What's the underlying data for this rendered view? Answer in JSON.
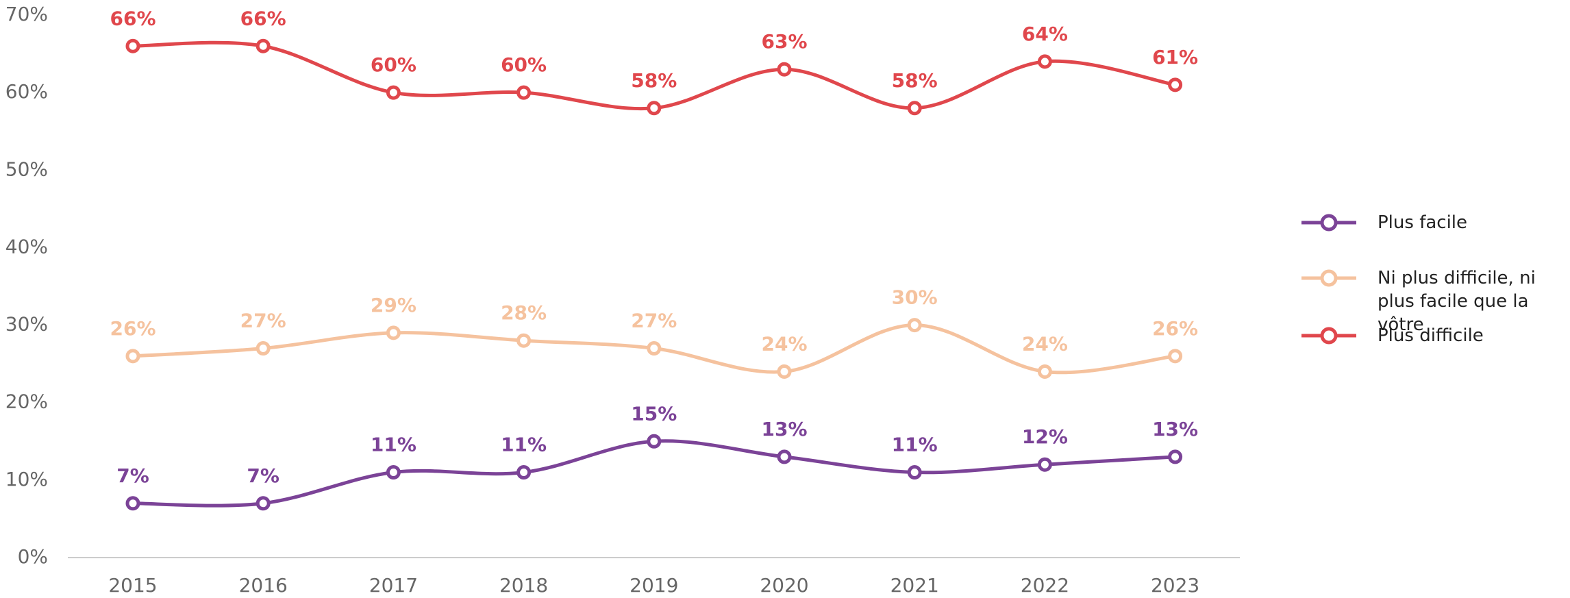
{
  "chart_data": {
    "type": "line",
    "categories": [
      "2015",
      "2016",
      "2017",
      "2018",
      "2019",
      "2020",
      "2021",
      "2022",
      "2023"
    ],
    "series": [
      {
        "name": "Plus facile",
        "color": "#7b4397",
        "values": [
          7,
          7,
          11,
          11,
          15,
          13,
          11,
          12,
          13
        ],
        "value_labels": [
          "7%",
          "7%",
          "11%",
          "11%",
          "15%",
          "13%",
          "11%",
          "12%",
          "13%"
        ]
      },
      {
        "name": "Ni plus difficile, ni plus facile que la vôtre",
        "color": "#f5c29e",
        "values": [
          26,
          27,
          29,
          28,
          27,
          24,
          30,
          24,
          26
        ],
        "value_labels": [
          "26%",
          "27%",
          "29%",
          "28%",
          "27%",
          "24%",
          "30%",
          "24%",
          "26%"
        ]
      },
      {
        "name": "Plus difficile",
        "color": "#e0474c",
        "values": [
          66,
          66,
          60,
          60,
          58,
          63,
          58,
          64,
          61
        ],
        "value_labels": [
          "66%",
          "66%",
          "60%",
          "60%",
          "58%",
          "63%",
          "58%",
          "64%",
          "61%"
        ]
      }
    ],
    "ylim": [
      0,
      70
    ],
    "yticks": [
      {
        "value": 0,
        "label": "0%"
      },
      {
        "value": 10,
        "label": "10%"
      },
      {
        "value": 20,
        "label": "20%"
      },
      {
        "value": 30,
        "label": "30%"
      },
      {
        "value": 40,
        "label": "40%"
      },
      {
        "value": 50,
        "label": "50%"
      },
      {
        "value": 60,
        "label": "60%"
      },
      {
        "value": 70,
        "label": "70%"
      }
    ],
    "legend": "right"
  }
}
